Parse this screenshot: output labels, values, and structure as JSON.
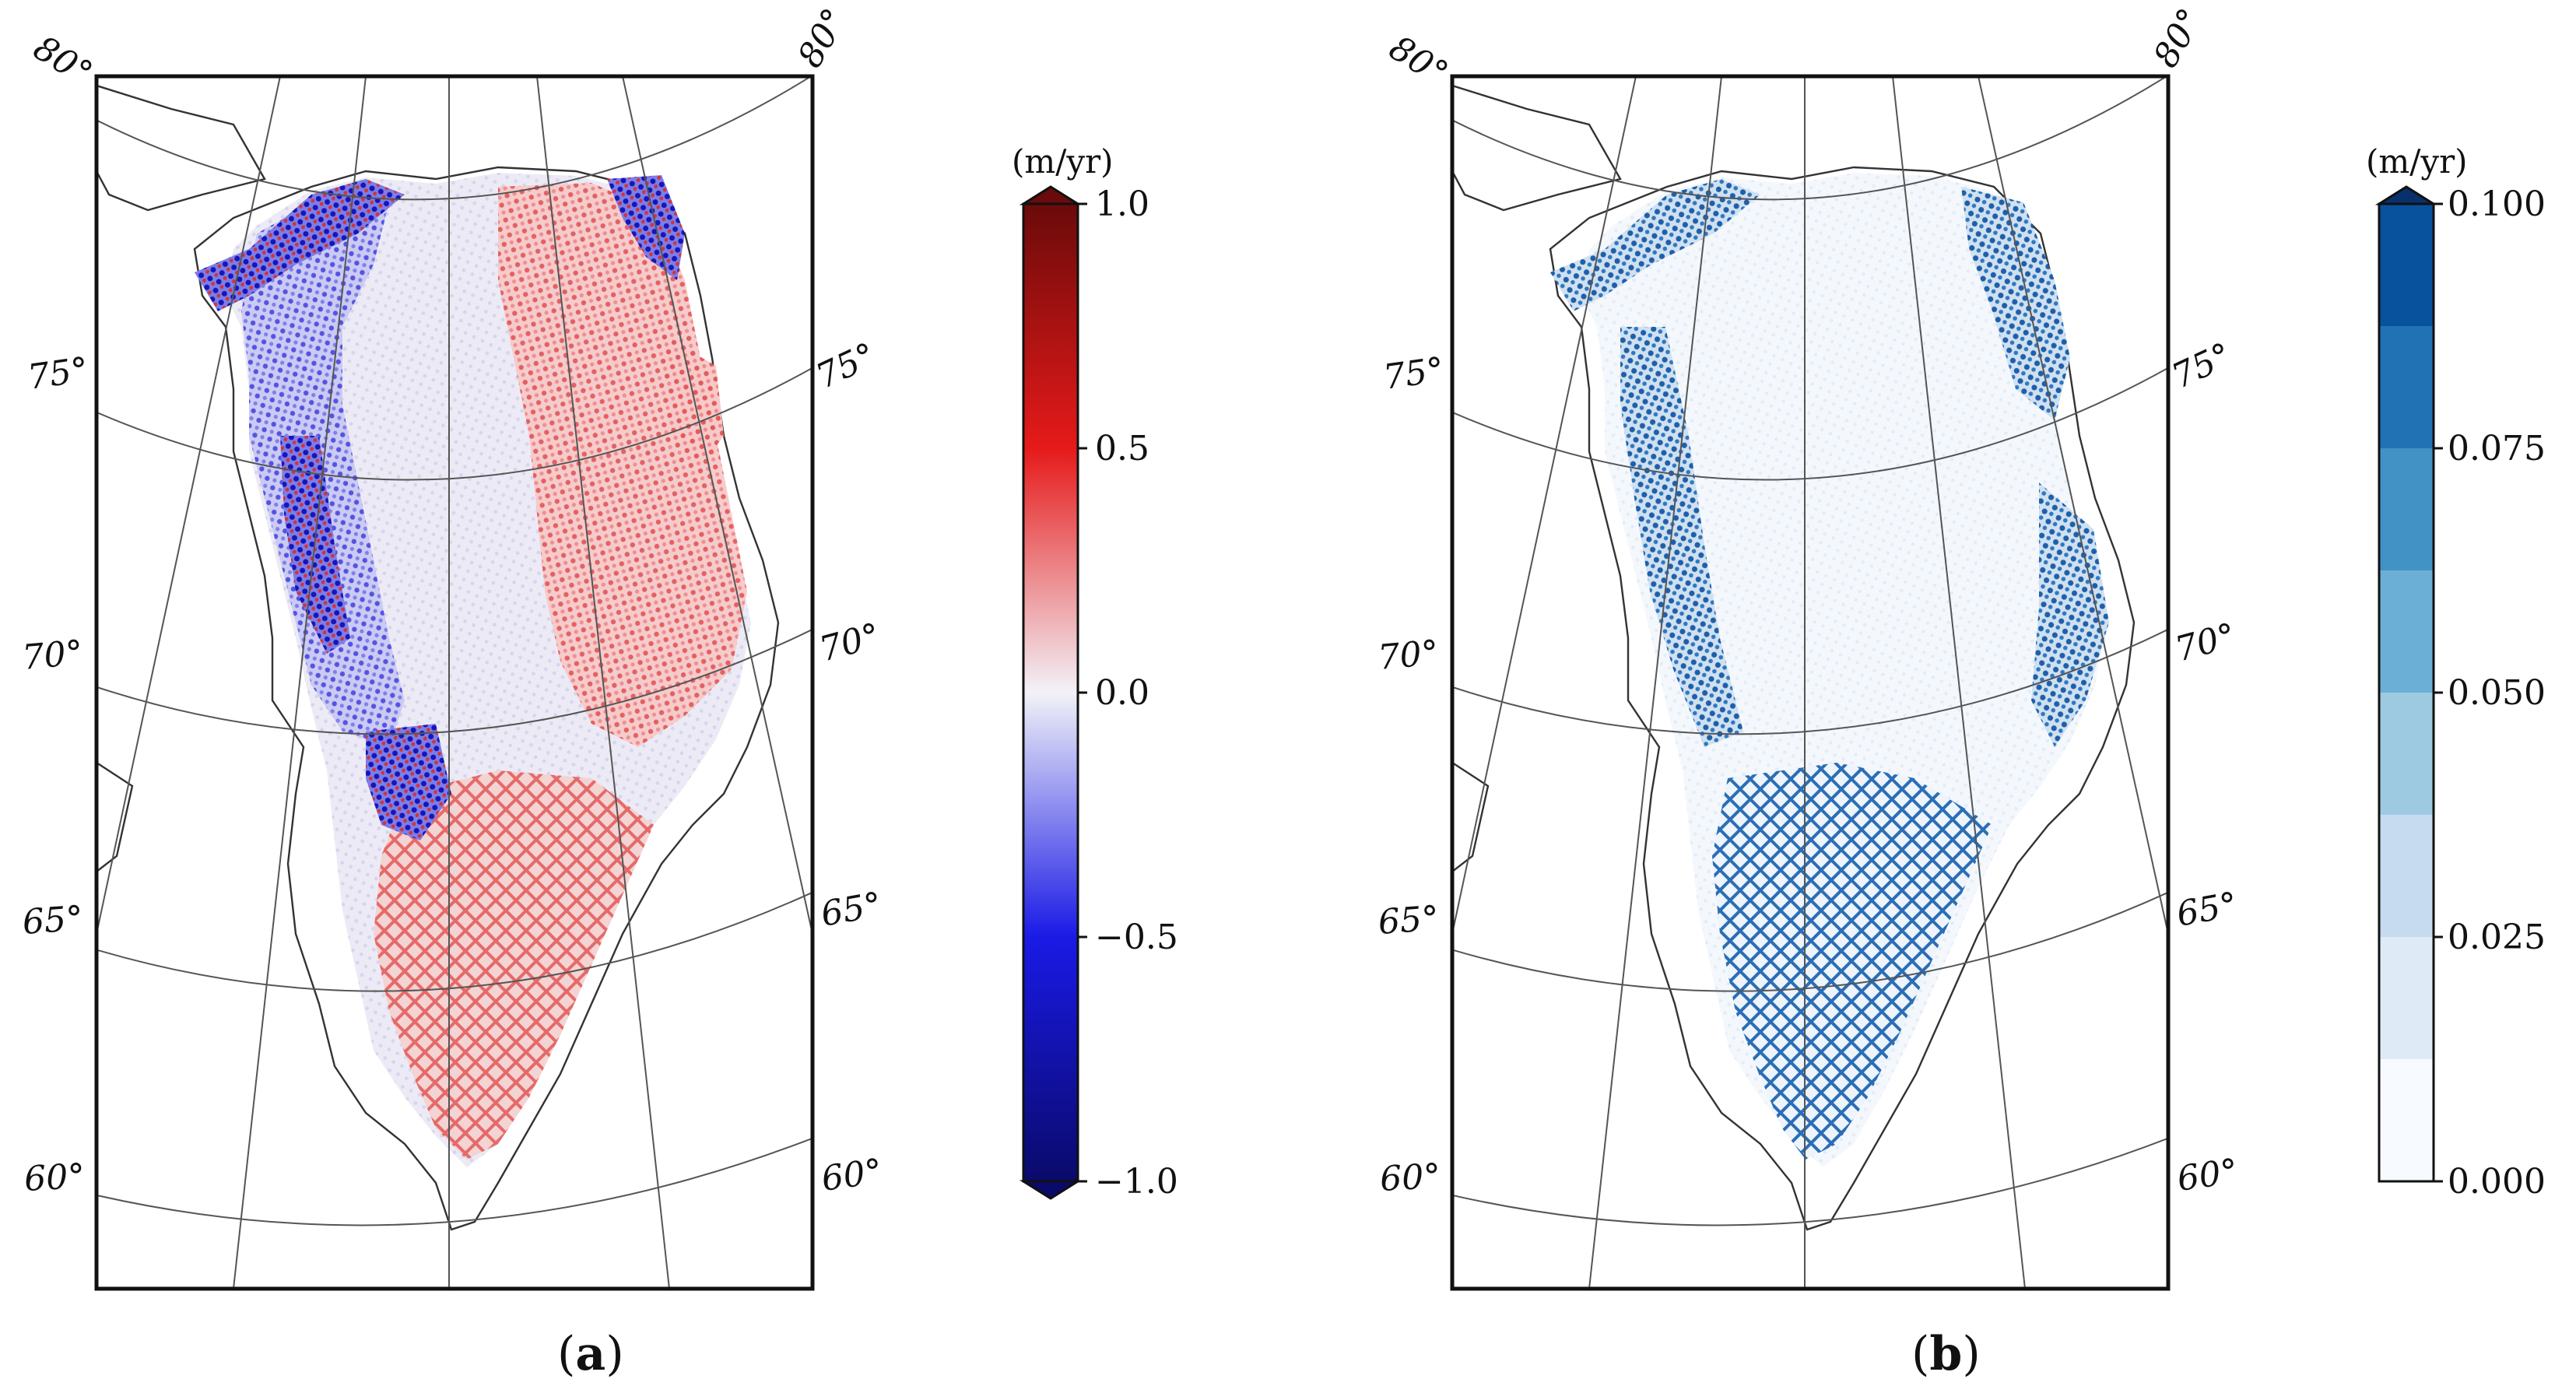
{
  "figure": {
    "panels": [
      {
        "id": "a",
        "label_paren_open": "(",
        "label_letter": "a",
        "label_paren_close": ")",
        "lat_labels_left": [
          "80°",
          "75°",
          "70°",
          "65°",
          "60°"
        ],
        "lat_labels_right": [
          "80°",
          "75°",
          "70°",
          "65°",
          "60°"
        ]
      },
      {
        "id": "b",
        "label_paren_open": "(",
        "label_letter": "b",
        "label_paren_close": ")",
        "lat_labels_left": [
          "80°",
          "75°",
          "70°",
          "65°",
          "60°"
        ],
        "lat_labels_right": [
          "80°",
          "75°",
          "70°",
          "65°",
          "60°"
        ]
      }
    ]
  },
  "chart_data": [
    {
      "type": "heatmap",
      "panel": "a",
      "title": "",
      "colorbar": {
        "unit": "(m/yr)",
        "min": -1.0,
        "max": 1.0,
        "ticks": [
          "1.0",
          "0.5",
          "0.0",
          "−0.5",
          "−1.0"
        ],
        "tick_values": [
          1.0,
          0.5,
          0.0,
          -0.5,
          -1.0
        ],
        "colormap": "diverging blue-white-red (seismic)",
        "extend": "both",
        "colors": {
          "min": "#0a0a6b",
          "low": "#1a1ae6",
          "mid": "#f2f2f8",
          "high": "#e61a1a",
          "max": "#6b0a0a"
        }
      },
      "latitudes": [
        80,
        75,
        70,
        65,
        60
      ],
      "description_region": "Greenland ice sheet"
    },
    {
      "type": "heatmap",
      "panel": "b",
      "title": "",
      "colorbar": {
        "unit": "(m/yr)",
        "min": 0.0,
        "max": 0.1,
        "ticks": [
          "0.100",
          "0.075",
          "0.050",
          "0.025",
          "0.000"
        ],
        "tick_values": [
          0.1,
          0.075,
          0.05,
          0.025,
          0.0
        ],
        "levels": [
          0.0,
          0.0125,
          0.025,
          0.0375,
          0.05,
          0.0625,
          0.075,
          0.0875,
          0.1
        ],
        "colormap": "sequential Blues (discrete)",
        "extend": "max",
        "colors": [
          "#f7fbff",
          "#deebf7",
          "#c6dbef",
          "#9ecae1",
          "#6baed6",
          "#4292c6",
          "#2171b5",
          "#08519c",
          "#08306b"
        ]
      },
      "latitudes": [
        80,
        75,
        70,
        65,
        60
      ],
      "description_region": "Greenland ice sheet"
    }
  ]
}
